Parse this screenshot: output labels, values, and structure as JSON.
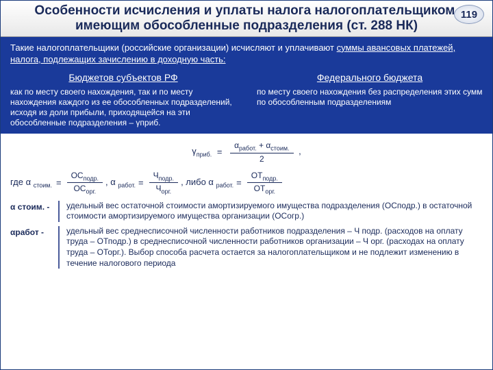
{
  "header": {
    "title": "Особенности исчисления и уплаты налога налогоплательщиком, имеющим обособленные подразделения (ст. 288 НК)",
    "badge": "119"
  },
  "blue": {
    "intro": "Такие налогоплательщики (российские организации) исчисляют и уплачивают ",
    "intro_u": "суммы авансовых платежей, налога, подлежащих зачислению в доходную часть:",
    "col1h": "Бюджетов субъектов РФ",
    "col1t": "как по месту своего нахождения, так и по месту нахождения каждого из ее обособленных подразделений, исходя из доли прибыли, приходящейся на эти обособленные подразделения – γприб.",
    "col2h": "Федерального бюджета",
    "col2t": "по месту своего нахождения без распределения этих сумм по обособленным подразделениям"
  },
  "f": {
    "g": "γ",
    "gs": "приб.",
    "eq": "=",
    "a": "α",
    "ar": "работ.",
    "as": "стоим.",
    "p": "+",
    "two": "2",
    "com": ",",
    "gde": "где α",
    "os": "ОС",
    "osp": "подр.",
    "oso": "орг.",
    "ch": "Ч",
    "chp": "подр.",
    "cho": "орг.",
    "ot": "ОТ",
    "otp": "подр.",
    "oto": "орг.",
    "libo": ", либо α",
    "ra": "работ.",
    "al": "α",
    "sp": " "
  },
  "defs": {
    "d1l": "α стоим. -",
    "d1t": "удельный вес остаточной стоимости амортизируемого имущества подразделения (ОСподр.) в остаточной стоимости амортизируемого имущества организации (ОСогр.)",
    "d2l": "αработ -",
    "d2t": "удельный вес среднесписочной численности работников подразделения – Ч подр. (расходов на оплату труда – ОТподр.) в среднесписочной численности работников организации – Ч орг. (расходах на оплату труда – ОТорг.). Выбор способа расчета остается за налогоплательщиком и не подлежит изменению в течение налогового периода"
  },
  "colors": {
    "blue": "#1a3a9a",
    "text": "#1a2a5a"
  }
}
